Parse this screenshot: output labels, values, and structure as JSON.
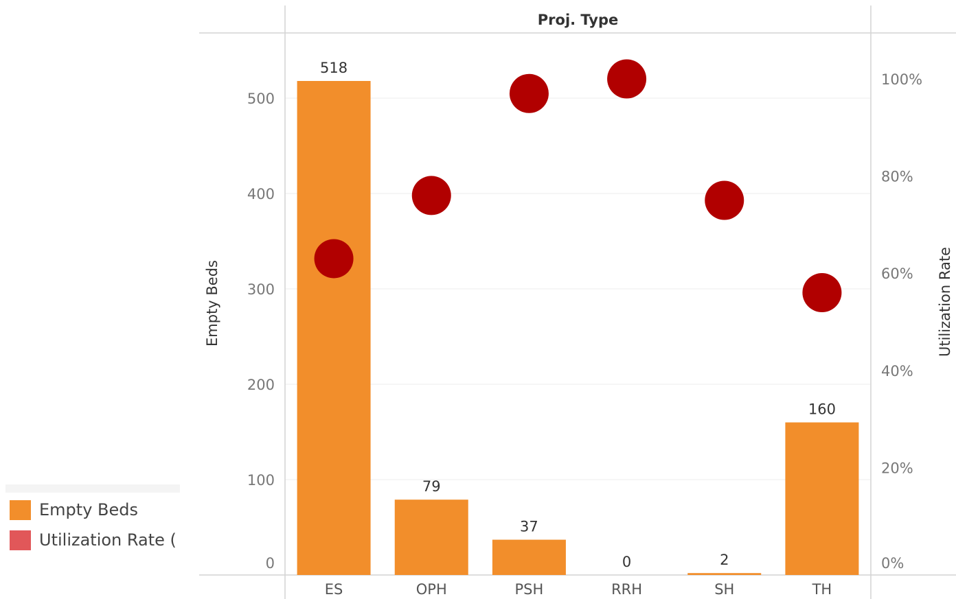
{
  "chart_data": {
    "type": "bar",
    "title": "",
    "header": "Proj. Type",
    "categories": [
      "ES",
      "OPH",
      "PSH",
      "RRH",
      "SH",
      "TH"
    ],
    "series": [
      {
        "name": "Empty Beds",
        "type": "bar",
        "axis": "left",
        "color": "#f28e2b",
        "values": [
          518,
          79,
          37,
          0,
          2,
          160
        ],
        "data_labels": [
          "518",
          "79",
          "37",
          "0",
          "2",
          "160"
        ]
      },
      {
        "name": "Utilization Rate",
        "type": "scatter",
        "axis": "right",
        "color": "#b10000",
        "values": [
          0.63,
          0.76,
          0.97,
          1.0,
          0.75,
          0.56
        ]
      }
    ],
    "ylabel": "Empty Beds",
    "ylim": [
      0,
      555
    ],
    "yticks": [
      0,
      100,
      200,
      300,
      400,
      500
    ],
    "ytick_labels": [
      "0",
      "100",
      "200",
      "300",
      "400",
      "500"
    ],
    "y2label": "Utilization Rate",
    "y2lim": [
      0,
      1.0
    ],
    "y2ticks": [
      0,
      0.2,
      0.4,
      0.6,
      0.8,
      1.0
    ],
    "y2tick_labels": [
      "0%",
      "20%",
      "40%",
      "60%",
      "80%",
      "100%"
    ],
    "grid": true,
    "legend_position": "bottom-left"
  },
  "legend": {
    "items": [
      {
        "label": "Empty Beds",
        "color": "#f28e2b"
      },
      {
        "label": "Utilization Rate (",
        "color": "#e15759"
      }
    ]
  }
}
